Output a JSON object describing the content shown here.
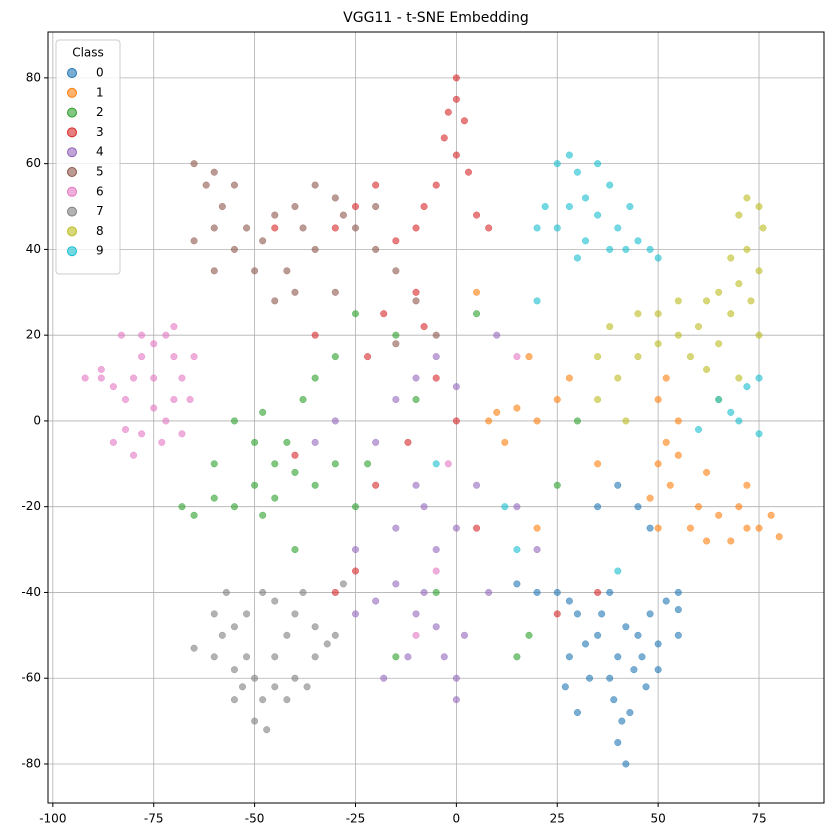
{
  "chart_data": {
    "type": "scatter",
    "title": "VGG11 - t-SNE Embedding",
    "xlim": [
      -101.2,
      91.1
    ],
    "ylim": [
      -89.1,
      90.7
    ],
    "xticks": [
      -100,
      -75,
      -50,
      -25,
      0,
      25,
      50,
      75
    ],
    "yticks": [
      -80,
      -60,
      -40,
      -20,
      0,
      20,
      40,
      60,
      80
    ],
    "grid": true,
    "legend": "upper left",
    "legend_title": "Class",
    "series": [
      {
        "name": "0",
        "color": "#1f77b4",
        "x": [
          40,
          42,
          41,
          39,
          43,
          38,
          40,
          35,
          32,
          45,
          50,
          55,
          48,
          52,
          55,
          30,
          28,
          25,
          36,
          44,
          47,
          50,
          33,
          28,
          27,
          30,
          45,
          48,
          35,
          40,
          55,
          38,
          42,
          46,
          20,
          15
        ],
        "y": [
          -75,
          -80,
          -70,
          -65,
          -68,
          -60,
          -55,
          -50,
          -52,
          -50,
          -52,
          -50,
          -45,
          -42,
          -40,
          -45,
          -42,
          -40,
          -45,
          -58,
          -62,
          -58,
          -60,
          -55,
          -62,
          -68,
          -20,
          -25,
          -20,
          -15,
          -44,
          -40,
          -48,
          -55,
          -40,
          -38
        ]
      },
      {
        "name": "1",
        "color": "#ff7f0e",
        "x": [
          50,
          52,
          55,
          53,
          50,
          52,
          55,
          60,
          65,
          70,
          75,
          80,
          78,
          72,
          68,
          62,
          58,
          50,
          48,
          72,
          62,
          10,
          8,
          15,
          20,
          25,
          12,
          5,
          18,
          28,
          35,
          20
        ],
        "y": [
          -10,
          -5,
          -8,
          -15,
          5,
          10,
          0,
          -20,
          -22,
          -20,
          -25,
          -27,
          -22,
          -25,
          -28,
          -28,
          -25,
          -25,
          -18,
          -15,
          -12,
          2,
          0,
          3,
          0,
          5,
          -5,
          30,
          15,
          10,
          -10,
          -25
        ]
      },
      {
        "name": "2",
        "color": "#2ca02c",
        "x": [
          -68,
          -65,
          -60,
          -55,
          -50,
          -48,
          -45,
          -42,
          -45,
          -50,
          -55,
          -48,
          -40,
          -35,
          -30,
          -25,
          -22,
          -38,
          -35,
          -30,
          -25,
          -15,
          -10,
          5,
          15,
          18,
          -15,
          -5,
          25,
          30,
          -40,
          -60
        ],
        "y": [
          -20,
          -22,
          -18,
          -20,
          -15,
          -22,
          -18,
          -5,
          -10,
          -5,
          0,
          2,
          -12,
          -15,
          -10,
          -20,
          -10,
          5,
          10,
          15,
          25,
          20,
          5,
          25,
          -55,
          -50,
          -55,
          -40,
          -15,
          0,
          -30,
          -10
        ]
      },
      {
        "name": "3",
        "color": "#d62728",
        "x": [
          0,
          0,
          -2,
          2,
          -3,
          0,
          3,
          -5,
          -8,
          5,
          -10,
          -15,
          -20,
          -25,
          -30,
          -22,
          -18,
          -10,
          -5,
          0,
          -12,
          -20,
          -25,
          -30,
          5,
          25,
          35,
          -35,
          -8,
          -40,
          -45,
          8
        ],
        "y": [
          80,
          75,
          72,
          70,
          66,
          62,
          58,
          55,
          50,
          48,
          45,
          42,
          55,
          50,
          45,
          15,
          25,
          30,
          10,
          0,
          -5,
          -15,
          -35,
          -40,
          -25,
          -45,
          -40,
          20,
          22,
          -8,
          45,
          45
        ]
      },
      {
        "name": "4",
        "color": "#9467bd",
        "x": [
          0,
          0,
          -3,
          2,
          -5,
          -10,
          -8,
          -15,
          -20,
          -25,
          -5,
          0,
          -8,
          -15,
          -10,
          5,
          -20,
          -15,
          -10,
          -5,
          0,
          -25,
          -12,
          8,
          15,
          20,
          -30,
          -35,
          10,
          -18
        ],
        "y": [
          -65,
          -60,
          -55,
          -50,
          -48,
          -45,
          -40,
          -38,
          -42,
          -45,
          -30,
          -25,
          -20,
          -25,
          -15,
          -15,
          -5,
          5,
          10,
          15,
          8,
          -30,
          -55,
          -40,
          -20,
          -30,
          0,
          -5,
          20,
          -60
        ]
      },
      {
        "name": "5",
        "color": "#8c564b",
        "x": [
          -65,
          -62,
          -60,
          -55,
          -58,
          -52,
          -48,
          -45,
          -40,
          -38,
          -35,
          -42,
          -50,
          -55,
          -60,
          -65,
          -30,
          -28,
          -25,
          -20,
          -15,
          -20,
          -45,
          -40,
          -60,
          -35,
          -10,
          -15,
          -5,
          -30
        ],
        "y": [
          60,
          55,
          58,
          55,
          50,
          45,
          42,
          48,
          50,
          45,
          40,
          35,
          35,
          40,
          45,
          42,
          52,
          48,
          45,
          40,
          35,
          50,
          28,
          30,
          35,
          55,
          28,
          18,
          20,
          30
        ]
      },
      {
        "name": "6",
        "color": "#e377c2",
        "x": [
          -92,
          -88,
          -85,
          -82,
          -80,
          -78,
          -75,
          -72,
          -70,
          -68,
          -65,
          -70,
          -72,
          -75,
          -78,
          -80,
          -82,
          -85,
          -68,
          -73,
          -83,
          -78,
          -75,
          -70,
          -66,
          -88,
          -5,
          -10,
          15,
          -2
        ],
        "y": [
          10,
          12,
          8,
          5,
          10,
          15,
          18,
          20,
          15,
          10,
          15,
          5,
          0,
          3,
          -3,
          -8,
          -2,
          -5,
          -3,
          -5,
          20,
          20,
          10,
          22,
          5,
          10,
          -35,
          -50,
          15,
          -10
        ]
      },
      {
        "name": "7",
        "color": "#7f7f7f",
        "x": [
          -65,
          -60,
          -57,
          -55,
          -52,
          -50,
          -48,
          -50,
          -47,
          -53,
          -55,
          -45,
          -42,
          -40,
          -45,
          -38,
          -40,
          -42,
          -37,
          -35,
          -32,
          -30,
          -35,
          -58,
          -48,
          -52,
          -45,
          -28,
          -55,
          -60
        ],
        "y": [
          -53,
          -45,
          -40,
          -48,
          -55,
          -60,
          -65,
          -70,
          -72,
          -62,
          -58,
          -55,
          -50,
          -45,
          -42,
          -40,
          -60,
          -65,
          -62,
          -55,
          -52,
          -50,
          -48,
          -50,
          -40,
          -45,
          -62,
          -38,
          -65,
          -55
        ]
      },
      {
        "name": "8",
        "color": "#bcbd22",
        "x": [
          72,
          75,
          70,
          76,
          72,
          75,
          70,
          65,
          62,
          68,
          60,
          55,
          50,
          45,
          40,
          35,
          38,
          45,
          50,
          58,
          62,
          65,
          70,
          75,
          68,
          73,
          55,
          35,
          42,
          65
        ],
        "y": [
          52,
          50,
          48,
          45,
          40,
          35,
          32,
          30,
          28,
          25,
          22,
          20,
          18,
          15,
          10,
          15,
          22,
          25,
          25,
          15,
          12,
          5,
          10,
          20,
          38,
          28,
          28,
          5,
          0,
          18
        ]
      },
      {
        "name": "9",
        "color": "#17becf",
        "x": [
          25,
          28,
          30,
          35,
          38,
          32,
          28,
          22,
          25,
          35,
          40,
          42,
          45,
          48,
          50,
          38,
          32,
          20,
          30,
          43,
          65,
          70,
          75,
          72,
          68,
          60,
          20,
          12,
          15,
          -5,
          40,
          75
        ],
        "y": [
          60,
          62,
          58,
          60,
          55,
          52,
          50,
          50,
          45,
          48,
          45,
          40,
          42,
          40,
          38,
          40,
          42,
          45,
          38,
          50,
          5,
          0,
          -3,
          8,
          2,
          -2,
          28,
          -20,
          -30,
          -10,
          -35,
          10
        ]
      }
    ]
  }
}
